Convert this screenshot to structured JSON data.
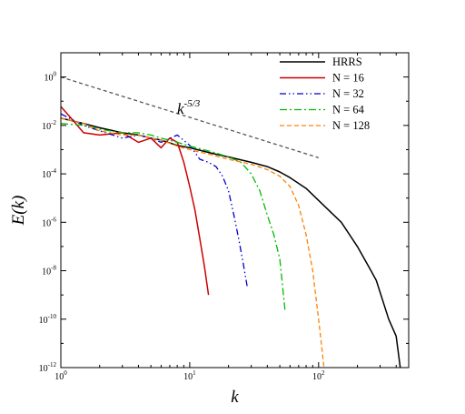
{
  "chart_data": {
    "type": "line",
    "xscale": "log",
    "yscale": "log",
    "xlim": [
      1,
      500
    ],
    "ylim": [
      1e-12,
      10
    ],
    "xlabel": "k",
    "ylabel": "E(k)",
    "xticks": [
      {
        "value": 1,
        "base": "10",
        "exp": "0"
      },
      {
        "value": 10,
        "base": "10",
        "exp": "1"
      },
      {
        "value": 100,
        "base": "10",
        "exp": "2"
      }
    ],
    "yticks": [
      {
        "value": 1,
        "base": "10",
        "exp": "0"
      },
      {
        "value": 0.01,
        "base": "10",
        "exp": "-2"
      },
      {
        "value": 0.0001,
        "base": "10",
        "exp": "-4"
      },
      {
        "value": 1e-06,
        "base": "10",
        "exp": "-6"
      },
      {
        "value": 1e-08,
        "base": "10",
        "exp": "-8"
      },
      {
        "value": 1e-10,
        "base": "10",
        "exp": "-10"
      },
      {
        "value": 1e-12,
        "base": "10",
        "exp": "-12"
      }
    ],
    "grid": false,
    "legend_position": "top-right",
    "series": [
      {
        "name": "HRRS",
        "color": "#000000",
        "dash": "solid",
        "width": 1.5,
        "x": [
          1,
          1.5,
          2,
          3,
          4,
          5,
          6,
          8,
          10,
          15,
          20,
          30,
          40,
          50,
          60,
          80,
          100,
          150,
          200,
          250,
          280,
          350,
          400,
          430,
          445
        ],
        "y": [
          0.02,
          0.012,
          0.008,
          0.005,
          0.004,
          0.003,
          0.0025,
          0.0015,
          0.0012,
          0.0007,
          0.0005,
          0.0003,
          0.0002,
          0.00012,
          7e-05,
          2.5e-05,
          8e-06,
          1e-06,
          1e-07,
          1.2e-08,
          4e-09,
          1e-10,
          2e-11,
          1e-12,
          1e-13
        ]
      },
      {
        "name": "N = 16",
        "color": "#cc0000",
        "dash": "solid",
        "width": 1.5,
        "x": [
          1,
          1.2,
          1.5,
          2,
          3,
          4,
          5,
          6,
          7,
          8,
          9,
          10,
          11,
          12,
          13,
          14
        ],
        "y": [
          0.06,
          0.02,
          0.005,
          0.004,
          0.005,
          0.002,
          0.003,
          0.0012,
          0.003,
          0.002,
          0.0003,
          3e-05,
          3e-06,
          2e-07,
          1.5e-08,
          1e-09
        ]
      },
      {
        "name": "N = 32",
        "color": "#0000cc",
        "dash": "7,3,1.5,3,1.5,3",
        "width": 1.3,
        "x": [
          1,
          1.5,
          2,
          3,
          4,
          5,
          6,
          8,
          10,
          12,
          14,
          16,
          18,
          20,
          22,
          24,
          26,
          28
        ],
        "y": [
          0.03,
          0.01,
          0.006,
          0.003,
          0.004,
          0.003,
          0.002,
          0.004,
          0.0015,
          0.0004,
          0.0003,
          0.0002,
          8e-05,
          2e-05,
          2e-06,
          2e-07,
          2e-08,
          2e-09
        ]
      },
      {
        "name": "N = 64",
        "color": "#00bb00",
        "dash": "8,3,2,3",
        "width": 1.3,
        "x": [
          1,
          1.5,
          2,
          3,
          4,
          5,
          6,
          8,
          10,
          15,
          20,
          25,
          30,
          35,
          40,
          45,
          50,
          55
        ],
        "y": [
          0.012,
          0.01,
          0.007,
          0.005,
          0.005,
          0.004,
          0.003,
          0.002,
          0.0014,
          0.0008,
          0.0005,
          0.0003,
          0.0001,
          2e-05,
          2e-06,
          3e-07,
          3e-08,
          2e-10
        ]
      },
      {
        "name": "N = 128",
        "color": "#ff8000",
        "dash": "5,3",
        "width": 1.3,
        "x": [
          1,
          1.5,
          2,
          3,
          4,
          5,
          6,
          8,
          10,
          15,
          20,
          30,
          40,
          50,
          60,
          70,
          80,
          90,
          100,
          105,
          110
        ],
        "y": [
          0.02,
          0.012,
          0.006,
          0.004,
          0.004,
          0.003,
          0.0025,
          0.0014,
          0.001,
          0.0006,
          0.0004,
          0.00025,
          0.00015,
          8e-05,
          3e-05,
          5e-06,
          3e-07,
          1e-08,
          1e-10,
          1e-11,
          1e-12
        ]
      }
    ],
    "reference_line": {
      "label_base": "k",
      "label_exp": "-5/3",
      "color": "#555555",
      "dash": "4,3",
      "x": [
        1,
        100
      ],
      "y": [
        1,
        0.000464
      ]
    }
  }
}
